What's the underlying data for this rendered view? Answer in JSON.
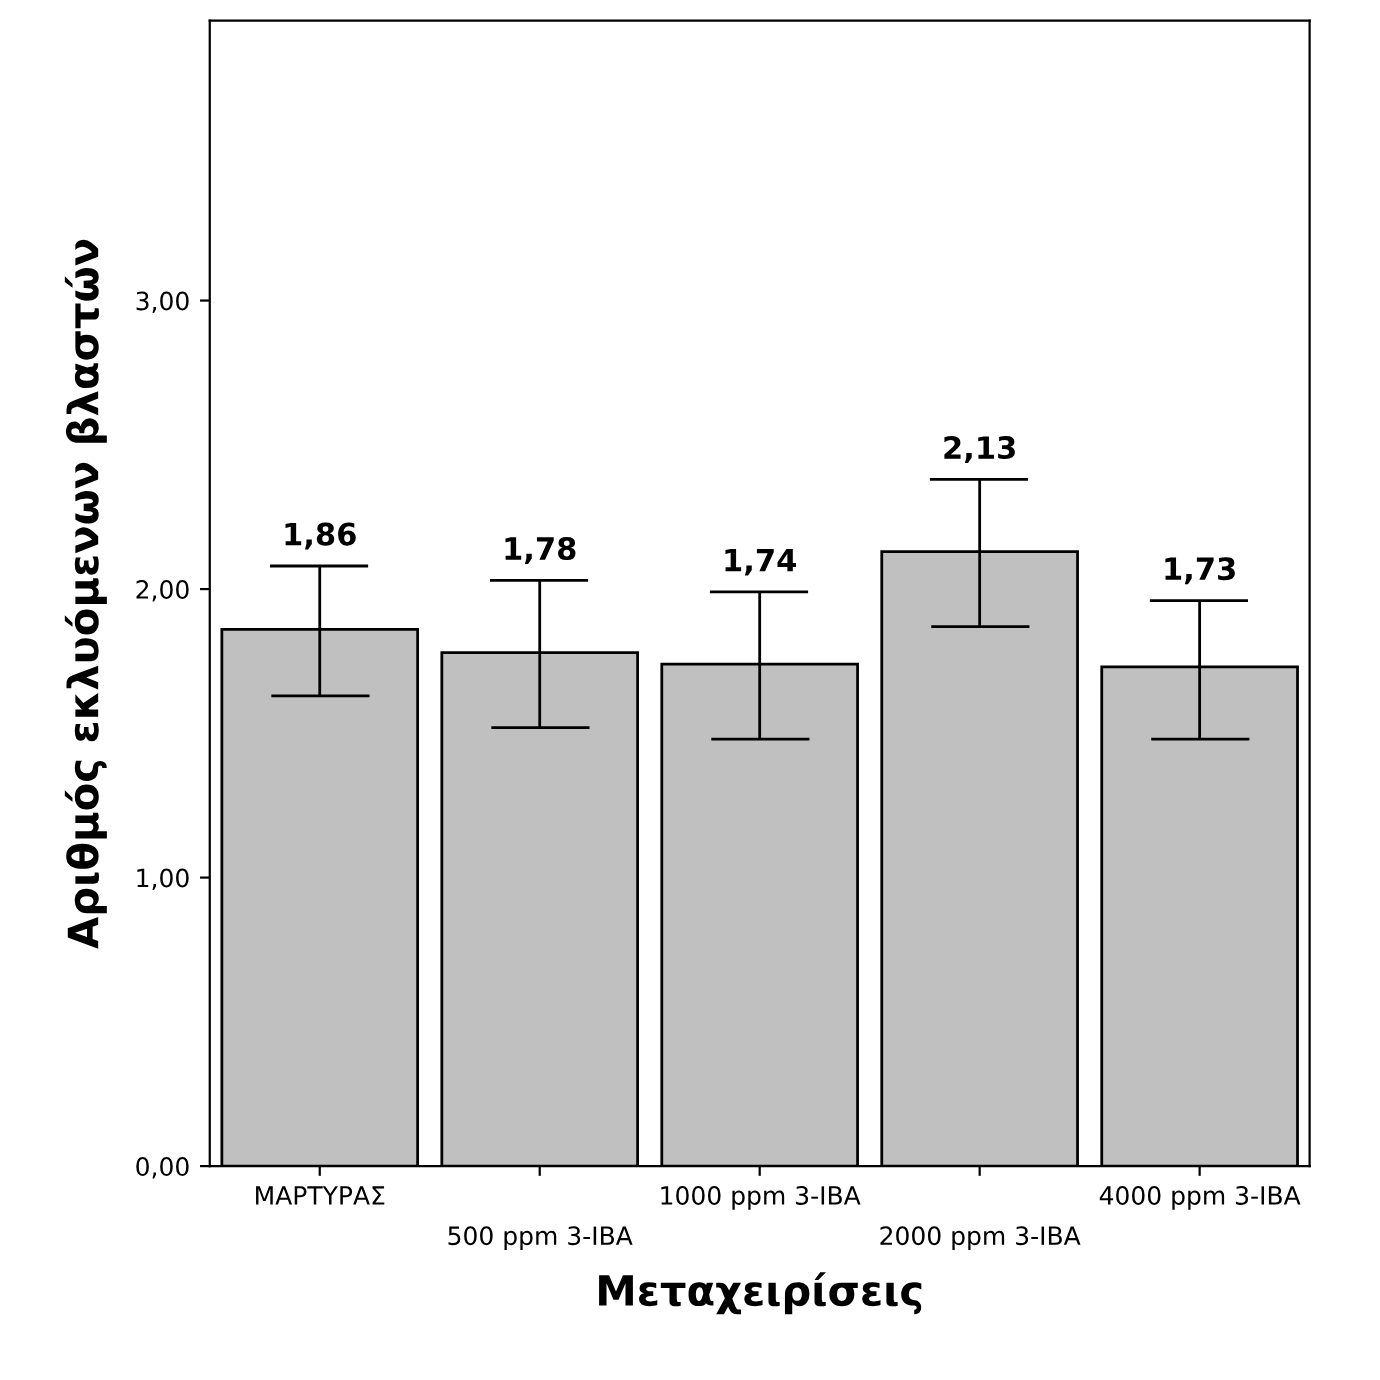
{
  "chart_data": {
    "type": "bar",
    "xlabel": "Μεταχειρίσεις",
    "ylabel": "Αριθμός εκλυόμενων βλαστών",
    "categories": [
      "ΜΑΡΤΥΡΑΣ",
      "500 ppm 3-IBA",
      "1000 ppm 3-IBA",
      "2000 ppm 3-IBA",
      "4000 ppm 3-IBA"
    ],
    "values": [
      1.86,
      1.78,
      1.74,
      2.13,
      1.73
    ],
    "value_labels": [
      "1,86",
      "1,78",
      "1,74",
      "2,13",
      "1,73"
    ],
    "errors": [
      [
        1.63,
        2.08
      ],
      [
        1.52,
        2.03
      ],
      [
        1.48,
        1.99
      ],
      [
        1.87,
        2.38
      ],
      [
        1.48,
        1.96
      ]
    ],
    "color": "#c0c0c0",
    "ylim": [
      0,
      3.97
    ],
    "yticks": [
      {
        "value": 0,
        "label": "0,00"
      },
      {
        "value": 1,
        "label": "1,00"
      },
      {
        "value": 2,
        "label": "2,00"
      },
      {
        "value": 3,
        "label": "3,00"
      }
    ],
    "grid": false
  }
}
